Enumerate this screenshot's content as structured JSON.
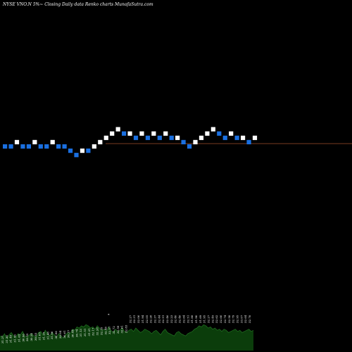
{
  "chart_data": {
    "type": "renko",
    "title": "NYSE VNO.N  5%~  Closing Daily data  Renko  charts MunafaSutra.com",
    "colors": {
      "background": "#000000",
      "up_brick": "#ffffff",
      "down_brick": "#1a6fe0",
      "reference_line": "#a0522d",
      "volume_fill": "#0b3d0b",
      "volume_line": "#1f6b1f"
    },
    "reference_level": 0,
    "footer_marker": "*",
    "bricks": [
      {
        "d": "down",
        "level": 0
      },
      {
        "d": "down",
        "level": 0
      },
      {
        "d": "up",
        "level": 1
      },
      {
        "d": "down",
        "level": 0
      },
      {
        "d": "down",
        "level": 0
      },
      {
        "d": "up",
        "level": 1
      },
      {
        "d": "down",
        "level": 0
      },
      {
        "d": "down",
        "level": 0
      },
      {
        "d": "up",
        "level": 1
      },
      {
        "d": "down",
        "level": 0
      },
      {
        "d": "down",
        "level": 0
      },
      {
        "d": "down",
        "level": -1
      },
      {
        "d": "down",
        "level": -2
      },
      {
        "d": "up",
        "level": -1
      },
      {
        "d": "down",
        "level": -1
      },
      {
        "d": "up",
        "level": 0
      },
      {
        "d": "up",
        "level": 1
      },
      {
        "d": "up",
        "level": 2
      },
      {
        "d": "up",
        "level": 3
      },
      {
        "d": "up",
        "level": 4
      },
      {
        "d": "down",
        "level": 3
      },
      {
        "d": "up",
        "level": 3
      },
      {
        "d": "down",
        "level": 2
      },
      {
        "d": "up",
        "level": 3
      },
      {
        "d": "down",
        "level": 2
      },
      {
        "d": "up",
        "level": 3
      },
      {
        "d": "down",
        "level": 2
      },
      {
        "d": "up",
        "level": 3
      },
      {
        "d": "down",
        "level": 2
      },
      {
        "d": "up",
        "level": 2
      },
      {
        "d": "down",
        "level": 1
      },
      {
        "d": "down",
        "level": 0
      },
      {
        "d": "up",
        "level": 1
      },
      {
        "d": "up",
        "level": 2
      },
      {
        "d": "up",
        "level": 3
      },
      {
        "d": "up",
        "level": 4
      },
      {
        "d": "down",
        "level": 3
      },
      {
        "d": "down",
        "level": 2
      },
      {
        "d": "up",
        "level": 3
      },
      {
        "d": "down",
        "level": 2
      },
      {
        "d": "up",
        "level": 2
      },
      {
        "d": "down",
        "level": 1
      },
      {
        "d": "up",
        "level": 2
      }
    ],
    "volume": [
      8,
      7,
      10,
      6,
      9,
      11,
      8,
      7,
      10,
      9,
      12,
      8,
      7,
      9,
      10,
      8,
      7,
      11,
      12,
      9,
      13,
      10,
      8,
      11,
      9,
      7,
      10,
      8,
      6,
      9,
      11,
      10,
      14,
      13,
      16,
      15,
      17,
      16,
      18,
      17,
      15,
      16,
      14,
      17,
      15,
      13,
      14,
      12,
      16,
      13,
      11,
      14,
      12,
      13,
      15,
      12,
      11,
      13,
      14,
      12,
      15,
      13,
      11,
      12,
      14,
      13,
      12,
      10,
      12,
      13,
      11,
      9,
      12,
      14,
      11,
      10,
      9,
      8,
      11,
      12,
      10,
      9,
      8,
      10,
      11,
      12,
      14,
      15,
      17,
      16,
      18,
      17,
      15,
      16,
      14,
      15,
      13,
      14,
      12,
      14,
      13,
      11,
      12,
      13,
      14,
      12,
      13,
      11,
      12,
      13,
      14,
      12,
      13
    ],
    "tick_labels": [
      "31.27",
      "31.36",
      "31.45",
      "31.56",
      "31.65",
      "30.96",
      "30.55",
      "30.24",
      "30.63",
      "31.05",
      "31.25",
      "31.48",
      "31.06",
      "30.96",
      "30.64",
      "30.61",
      "30.27",
      "30.44",
      "30.74",
      "31.13",
      "31.51",
      "31.21",
      "32.17",
      "32.28",
      "32.35",
      "32.48",
      "32.57",
      "32.72",
      "32.59",
      "32.61",
      "32.83",
      "32.27",
      "32.31",
      "32.06",
      "31.94",
      "32.05",
      "32.28",
      "32.37",
      "32.44",
      "32.51",
      "32.46",
      "32.23",
      "32.40",
      "32.46",
      "32.64",
      "32.51",
      "31.88",
      "31.90",
      "31.69",
      "31.95",
      "32.27",
      "32.45",
      "32.62",
      "32.66",
      "32.74",
      "32.58",
      "32.79",
      "32.95",
      "33.07",
      "32.64",
      "32.78"
    ]
  }
}
